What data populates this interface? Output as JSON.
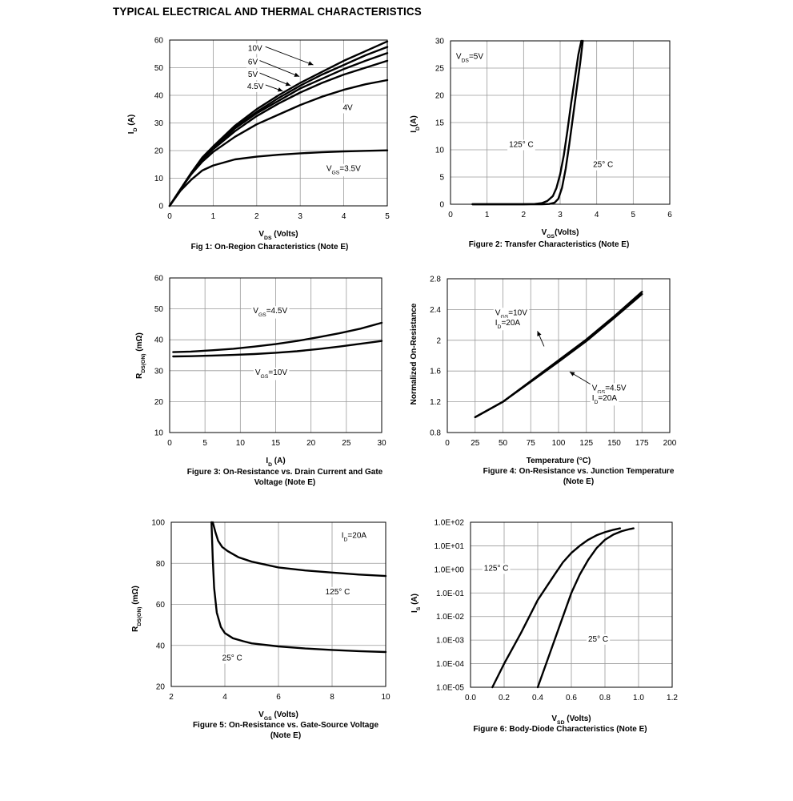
{
  "page_title": "TYPICAL ELECTRICAL AND THERMAL CHARACTERISTICS",
  "chart_data": [
    {
      "id": "fig1",
      "type": "line",
      "caption": [
        "Fig 1: On-Region Characteristics (Note E)"
      ],
      "xlabel": {
        "main": "V",
        "sub": "DS",
        "rest": " (Volts)"
      },
      "ylabel": {
        "main": "I",
        "sub": "D",
        "rest": " (A)"
      },
      "xlim": [
        0,
        5
      ],
      "ylim": [
        0,
        60
      ],
      "yscale": "linear",
      "xticks": [
        0,
        1,
        2,
        3,
        4,
        5
      ],
      "xticklabels": [
        "0",
        "1",
        "2",
        "3",
        "4",
        "5"
      ],
      "yticks": [
        0,
        10,
        20,
        30,
        40,
        50,
        60
      ],
      "yticklabels": [
        "0",
        "10",
        "20",
        "30",
        "40",
        "50",
        "60"
      ],
      "grid": true,
      "series": [
        {
          "name": "10V",
          "x": [
            0,
            0.25,
            0.5,
            0.75,
            1,
            1.5,
            2,
            2.5,
            3,
            3.5,
            4,
            4.5,
            5
          ],
          "y": [
            0,
            6,
            12,
            17.5,
            21.5,
            29,
            35,
            40,
            44.5,
            48.5,
            52.5,
            56,
            59.5
          ]
        },
        {
          "name": "6V",
          "x": [
            0,
            0.25,
            0.5,
            0.75,
            1,
            1.5,
            2,
            2.5,
            3,
            3.5,
            4,
            4.5,
            5
          ],
          "y": [
            0,
            6,
            12,
            17.3,
            21,
            28.5,
            34,
            39,
            43.5,
            47.5,
            51,
            54.5,
            57.5
          ]
        },
        {
          "name": "5V",
          "x": [
            0,
            0.25,
            0.5,
            0.75,
            1,
            1.5,
            2,
            2.5,
            3,
            3.5,
            4,
            4.5,
            5
          ],
          "y": [
            0,
            6,
            12,
            17,
            20.8,
            28,
            33.5,
            38,
            42.5,
            46,
            49.5,
            52.5,
            55.3
          ]
        },
        {
          "name": "4.5V",
          "x": [
            0,
            0.25,
            0.5,
            0.75,
            1,
            1.5,
            2,
            2.5,
            3,
            3.5,
            4,
            4.5,
            5
          ],
          "y": [
            0,
            6,
            11.8,
            16.8,
            20.5,
            27,
            32.5,
            37,
            41,
            44.5,
            47.5,
            50,
            52.5
          ]
        },
        {
          "name": "4V",
          "x": [
            0,
            0.25,
            0.5,
            0.75,
            1,
            1.5,
            2,
            2.5,
            3,
            3.5,
            4,
            4.5,
            5
          ],
          "y": [
            0,
            6,
            11.5,
            16,
            19.5,
            25,
            29.5,
            33,
            36.5,
            39.5,
            42,
            44,
            45.5
          ]
        },
        {
          "name": "VGS=3.5V",
          "x": [
            0,
            0.25,
            0.5,
            0.75,
            1,
            1.5,
            2,
            2.5,
            3,
            3.5,
            4,
            4.5,
            5
          ],
          "y": [
            0,
            5.5,
            9.5,
            12.8,
            14.6,
            16.8,
            17.8,
            18.5,
            19,
            19.4,
            19.7,
            19.9,
            20.1
          ]
        }
      ],
      "annotations": [
        {
          "text": "10V",
          "x": 1.8,
          "y": 57.3,
          "line": [
            2.2,
            57.6,
            3.3,
            51
          ]
        },
        {
          "text": "6V",
          "x": 1.8,
          "y": 52.3,
          "line": [
            2.05,
            52.7,
            2.98,
            46.8
          ]
        },
        {
          "text": "5V",
          "x": 1.8,
          "y": 47.8,
          "line": [
            2.05,
            48.2,
            2.78,
            43.5
          ]
        },
        {
          "text": "4.5V",
          "x": 1.78,
          "y": 43.5,
          "line": [
            2.2,
            43.8,
            2.6,
            41.5
          ]
        },
        {
          "text": "4V",
          "x": 3.98,
          "y": 35.8
        },
        {
          "text": "V",
          "sub": "GS",
          "rest": "=3.5V",
          "x": 3.6,
          "y": 13.7
        }
      ]
    },
    {
      "id": "fig2",
      "type": "line",
      "caption": [
        "Figure 2: Transfer Characteristics (Note E)"
      ],
      "xlabel": {
        "main": "V",
        "sub": "GS",
        "rest": "(Volts)"
      },
      "ylabel": {
        "main": "I",
        "sub": "D",
        "rest": "(A)"
      },
      "xlim": [
        0,
        6
      ],
      "ylim": [
        0,
        30
      ],
      "yscale": "linear",
      "xticks": [
        0,
        1,
        2,
        3,
        4,
        5,
        6
      ],
      "xticklabels": [
        "0",
        "1",
        "2",
        "3",
        "4",
        "5",
        "6"
      ],
      "yticks": [
        0,
        5,
        10,
        15,
        20,
        25,
        30
      ],
      "yticklabels": [
        "0",
        "5",
        "10",
        "15",
        "20",
        "25",
        "30"
      ],
      "grid": true,
      "series": [
        {
          "name": "125° C",
          "x": [
            0.6,
            1.5,
            2.0,
            2.3,
            2.5,
            2.65,
            2.8,
            2.9,
            3.0,
            3.1,
            3.2,
            3.3,
            3.4,
            3.5,
            3.58
          ],
          "y": [
            0,
            0,
            0,
            0.05,
            0.2,
            0.6,
            1.5,
            3,
            5.5,
            9,
            13.5,
            18.5,
            23,
            27.5,
            30
          ]
        },
        {
          "name": "25° C",
          "x": [
            0.6,
            2.0,
            2.5,
            2.7,
            2.85,
            2.95,
            3.05,
            3.15,
            3.25,
            3.35,
            3.45,
            3.55,
            3.62
          ],
          "y": [
            0,
            0,
            0,
            0.05,
            0.3,
            1,
            3,
            6.5,
            11,
            16,
            21,
            26,
            30
          ]
        }
      ],
      "annotations": [
        {
          "text": "V",
          "sub": "DS",
          "rest": "=5V",
          "x": 0.15,
          "y": 27.3
        },
        {
          "text": "125° C",
          "x": 1.6,
          "y": 11.1
        },
        {
          "text": "25° C",
          "x": 3.9,
          "y": 7.4
        }
      ]
    },
    {
      "id": "fig3",
      "type": "line",
      "caption": [
        "Figure 3: On-Resistance vs. Drain Current and Gate",
        "Voltage (Note E)"
      ],
      "xlabel": {
        "main": "I",
        "sub": "D",
        "rest": " (A)"
      },
      "ylabel": {
        "main": "R",
        "sub": "DS(ON)",
        "rest": " (mΩ)"
      },
      "xlim": [
        0,
        30
      ],
      "ylim": [
        10,
        60
      ],
      "yscale": "linear",
      "xticks": [
        0,
        5,
        10,
        15,
        20,
        25,
        30
      ],
      "xticklabels": [
        "0",
        "5",
        "10",
        "15",
        "20",
        "25",
        "30"
      ],
      "yticks": [
        10,
        20,
        30,
        40,
        50,
        60
      ],
      "yticklabels": [
        "10",
        "20",
        "30",
        "40",
        "50",
        "60"
      ],
      "grid": true,
      "series": [
        {
          "name": "VGS=4.5V",
          "x": [
            0.5,
            3,
            6,
            9,
            12,
            15,
            18,
            21,
            24,
            27,
            30
          ],
          "y": [
            36,
            36.2,
            36.6,
            37.1,
            37.8,
            38.6,
            39.6,
            40.8,
            42.1,
            43.6,
            45.5
          ]
        },
        {
          "name": "VGS=10V",
          "x": [
            0.5,
            3,
            6,
            9,
            12,
            15,
            18,
            21,
            24,
            27,
            30
          ],
          "y": [
            34.6,
            34.7,
            34.9,
            35.1,
            35.4,
            35.8,
            36.3,
            37,
            37.8,
            38.7,
            39.6
          ]
        }
      ],
      "annotations": [
        {
          "text": "V",
          "sub": "GS",
          "rest": "=4.5V",
          "x": 11.8,
          "y": 49.6
        },
        {
          "text": "V",
          "sub": "GS",
          "rest": "=10V",
          "x": 12.1,
          "y": 29.7
        }
      ]
    },
    {
      "id": "fig4",
      "type": "line",
      "caption": [
        "Figure 4: On-Resistance vs. Junction Temperature",
        "(Note E)"
      ],
      "xlabel": {
        "main": "Temperature (°C)",
        "sub": "",
        "rest": ""
      },
      "ylabel": {
        "main": "Normalized On-Resistance",
        "sub": "",
        "rest": ""
      },
      "xlim": [
        0,
        200
      ],
      "ylim": [
        0.8,
        2.8
      ],
      "yscale": "linear",
      "xticks": [
        0,
        25,
        50,
        75,
        100,
        125,
        150,
        175,
        200
      ],
      "xticklabels": [
        "0",
        "25",
        "50",
        "75",
        "100",
        "125",
        "150",
        "175",
        "200"
      ],
      "yticks": [
        0.8,
        1.2,
        1.6,
        2,
        2.4,
        2.8
      ],
      "yticklabels": [
        "0.8",
        "1.2",
        "1.6",
        "2",
        "2.4",
        "2.8"
      ],
      "grid": true,
      "series": [
        {
          "name": "VGS=10V ID=20A",
          "x": [
            25,
            50,
            75,
            100,
            125,
            150,
            175
          ],
          "y": [
            1.0,
            1.2,
            1.46,
            1.72,
            1.99,
            2.29,
            2.6
          ]
        },
        {
          "name": "VGS=4.5V ID=20A",
          "x": [
            25,
            50,
            75,
            100,
            125,
            150,
            175
          ],
          "y": [
            1.0,
            1.2,
            1.47,
            1.74,
            2.01,
            2.31,
            2.63
          ]
        }
      ],
      "annotations": [
        {
          "text": "V",
          "sub": "GS",
          "rest": "=10V",
          "x": 43,
          "y": 2.37,
          "line": [
            87,
            1.92,
            81,
            2.12
          ]
        },
        {
          "text": "I",
          "sub": "D",
          "rest": "=20A",
          "x": 43,
          "y": 2.24
        },
        {
          "text": "V",
          "sub": "GS",
          "rest": "=4.5V",
          "x": 130,
          "y": 1.39,
          "line": [
            132,
            1.4,
            110,
            1.59
          ]
        },
        {
          "text": "I",
          "sub": "D",
          "rest": "=20A",
          "x": 130,
          "y": 1.26
        }
      ]
    },
    {
      "id": "fig5",
      "type": "line",
      "caption": [
        "Figure 5: On-Resistance vs. Gate-Source Voltage",
        "(Note E)"
      ],
      "xlabel": {
        "main": "V",
        "sub": "GS",
        "rest": " (Volts)"
      },
      "ylabel": {
        "main": "R",
        "sub": "DS(ON)",
        "rest": " (mΩ)"
      },
      "xlim": [
        2,
        10
      ],
      "ylim": [
        20,
        100
      ],
      "yscale": "linear",
      "xticks": [
        2,
        4,
        6,
        8,
        10
      ],
      "xticklabels": [
        "2",
        "4",
        "6",
        "8",
        "10"
      ],
      "yticks": [
        20,
        40,
        60,
        80,
        100
      ],
      "yticklabels": [
        "20",
        "40",
        "60",
        "80",
        "100"
      ],
      "grid": true,
      "series": [
        {
          "name": "125° C",
          "x": [
            3.55,
            3.65,
            3.75,
            3.9,
            4.1,
            4.5,
            5,
            6,
            7,
            8,
            9,
            10
          ],
          "y": [
            100,
            95,
            91,
            88,
            86,
            83,
            80.8,
            78,
            76.5,
            75.5,
            74.5,
            73.8
          ]
        },
        {
          "name": "25° C",
          "x": [
            3.5,
            3.55,
            3.6,
            3.7,
            3.85,
            4.0,
            4.3,
            4.7,
            5,
            6,
            7,
            8,
            9,
            10
          ],
          "y": [
            100,
            82,
            68,
            56,
            49,
            46,
            43.5,
            42,
            41,
            39.5,
            38.5,
            37.8,
            37.2,
            36.8
          ]
        }
      ],
      "annotations": [
        {
          "text": "I",
          "sub": "D",
          "rest": "=20A",
          "x": 8.35,
          "y": 94
        },
        {
          "text": "125° C",
          "x": 7.75,
          "y": 66.5
        },
        {
          "text": "25° C",
          "x": 3.9,
          "y": 34.2
        }
      ]
    },
    {
      "id": "fig6",
      "type": "line",
      "caption": [
        "Figure 6: Body-Diode Characteristics (Note E)"
      ],
      "xlabel": {
        "main": "V",
        "sub": "SD",
        "rest": " (Volts)"
      },
      "ylabel": {
        "main": "I",
        "sub": "S",
        "rest": " (A)"
      },
      "xlim": [
        0,
        1.2
      ],
      "ylim": [
        1e-05,
        100
      ],
      "yscale": "log",
      "xticks": [
        0,
        0.2,
        0.4,
        0.6,
        0.8,
        1.0,
        1.2
      ],
      "xticklabels": [
        "0.0",
        "0.2",
        "0.4",
        "0.6",
        "0.8",
        "1.0",
        "1.2"
      ],
      "yticks": [
        1e-05,
        0.0001,
        0.001,
        0.01,
        0.1,
        1,
        10,
        100
      ],
      "yticklabels": [
        "1.0E-05",
        "1.0E-04",
        "1.0E-03",
        "1.0E-02",
        "1.0E-01",
        "1.0E+00",
        "1.0E+01",
        "1.0E+02"
      ],
      "grid": true,
      "series": [
        {
          "name": "125° C",
          "x": [
            0.13,
            0.2,
            0.3,
            0.4,
            0.5,
            0.55,
            0.6,
            0.65,
            0.7,
            0.75,
            0.8,
            0.85,
            0.89
          ],
          "y": [
            1e-05,
            0.0001,
            0.002,
            0.05,
            0.6,
            2,
            5,
            10,
            18,
            28,
            38,
            48,
            55
          ]
        },
        {
          "name": "25° C",
          "x": [
            0.4,
            0.45,
            0.5,
            0.55,
            0.6,
            0.65,
            0.7,
            0.75,
            0.8,
            0.85,
            0.9,
            0.95,
            0.97
          ],
          "y": [
            1e-05,
            0.0001,
            0.001,
            0.01,
            0.1,
            0.6,
            2.5,
            8,
            18,
            30,
            42,
            52,
            55
          ]
        }
      ],
      "annotations": [
        {
          "text": "125° C",
          "x": 0.08,
          "y": 1.2
        },
        {
          "text": "25° C",
          "x": 0.7,
          "y": 0.0012
        }
      ]
    }
  ]
}
